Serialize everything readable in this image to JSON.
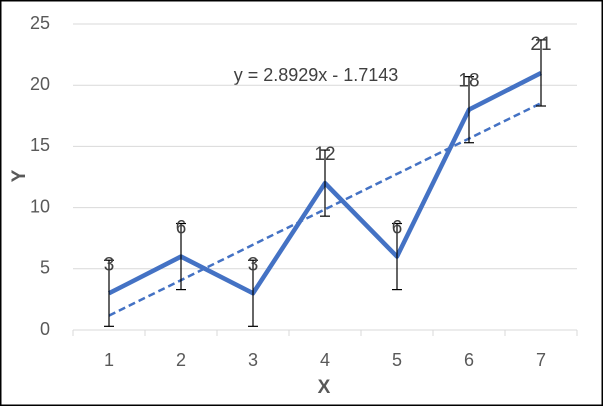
{
  "chart_data": {
    "type": "line",
    "x_label": "X",
    "y_label": "Y",
    "categories": [
      "1",
      "2",
      "3",
      "4",
      "5",
      "6",
      "7"
    ],
    "values": [
      3,
      6,
      3,
      12,
      6,
      18,
      21
    ],
    "errors": [
      2.7,
      2.7,
      2.7,
      2.7,
      2.7,
      2.7,
      2.7
    ],
    "color": "#4472c4",
    "error_color": "#000000",
    "trendline": {
      "label": "y = 2.8929x - 1.7143",
      "slope": 2.8929,
      "intercept": -1.7143
    },
    "ylim": [
      0,
      25
    ],
    "yticks": [
      0,
      5,
      10,
      15,
      20,
      25
    ],
    "grid": true
  }
}
